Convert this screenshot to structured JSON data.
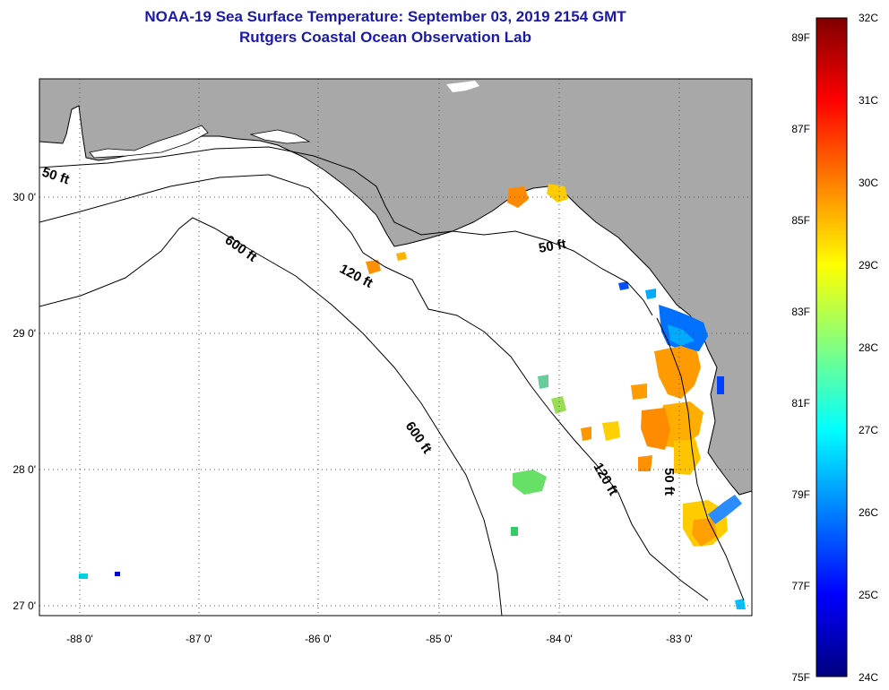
{
  "title": {
    "line1": "NOAA-19 Sea Surface Temperature:  September 03, 2019 2154 GMT",
    "line2": "Rutgers Coastal Ocean Observation Lab"
  },
  "map": {
    "longitude_labels": [
      "-88 0'",
      "-87 0'",
      "-86 0'",
      "-85 0'",
      "-84 0'",
      "-83 0'"
    ],
    "latitude_labels": [
      "30 0'",
      "29 0'",
      "28 0'",
      "27 0'"
    ],
    "contour_labels": [
      "50 ft",
      "600 ft",
      "120 ft",
      "50 ft",
      "600 ft",
      "120 ft",
      "50 ft"
    ],
    "colors": {
      "land": "#a8a8a8",
      "water": "#ffffff",
      "coast": "#000000"
    }
  },
  "colorbar": {
    "celsius_labels": [
      "32C",
      "31C",
      "30C",
      "29C",
      "28C",
      "27C",
      "26C",
      "25C",
      "24C"
    ],
    "fahrenheit_labels": [
      "89F",
      "87F",
      "85F",
      "83F",
      "81F",
      "79F",
      "77F",
      "75F"
    ],
    "gradient": [
      "#00007f",
      "#0000ff",
      "#0080ff",
      "#00ffff",
      "#80ff80",
      "#ffff00",
      "#ff8000",
      "#ff0000",
      "#7f0000"
    ]
  }
}
